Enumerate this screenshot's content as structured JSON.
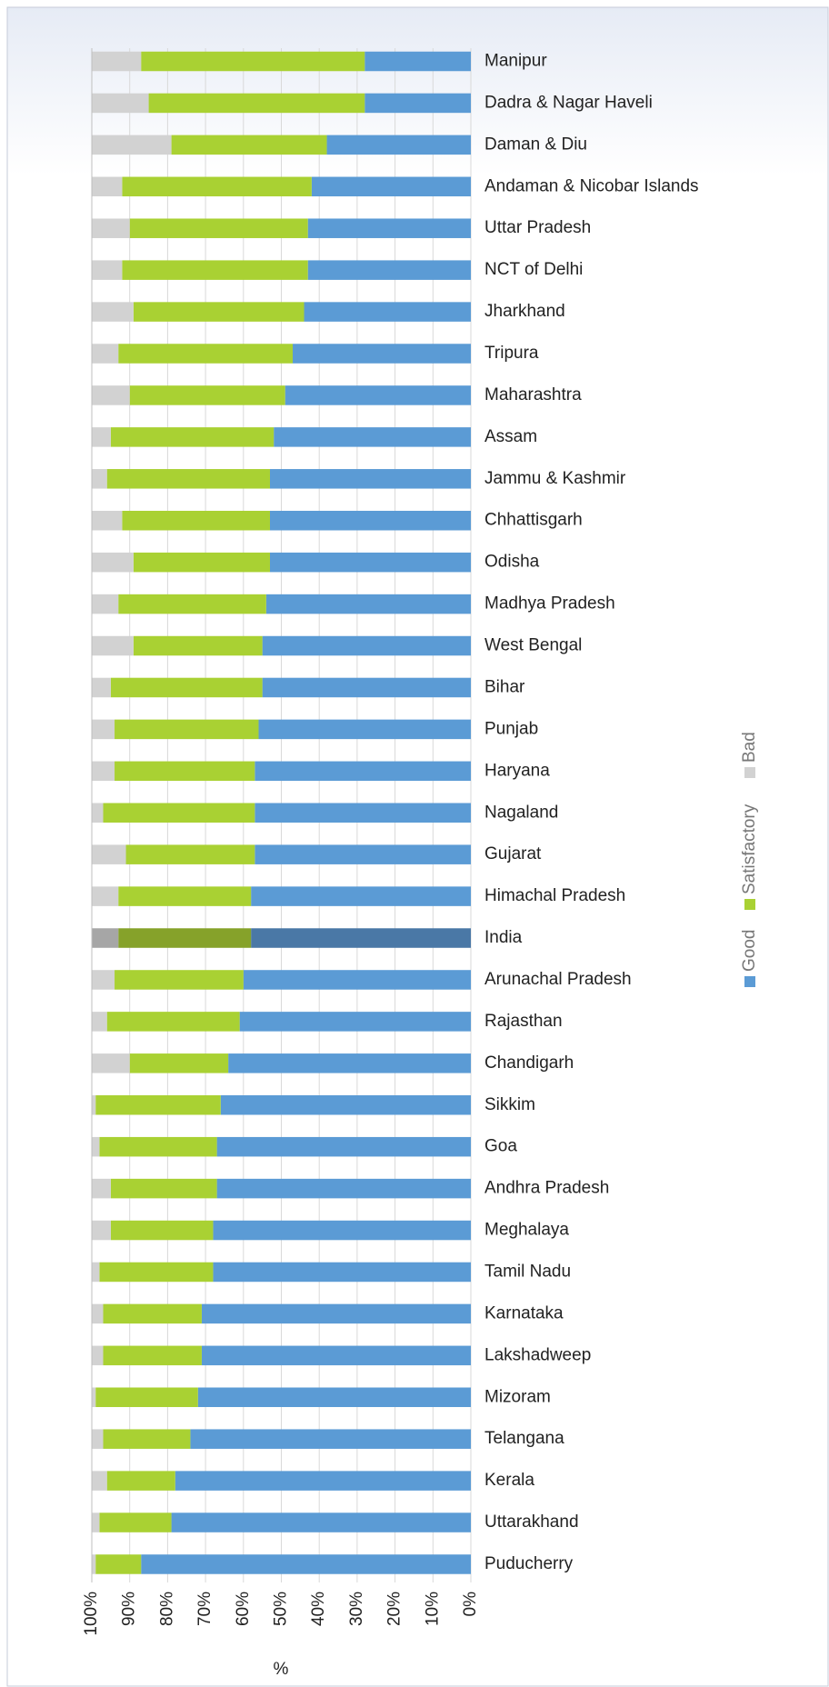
{
  "chart_data": {
    "type": "stacked-barh",
    "categories": [
      "Manipur",
      "Dadra & Nagar Haveli",
      "Daman & Diu",
      "Andaman & Nicobar Islands",
      "Uttar Pradesh",
      "NCT of Delhi",
      "Jharkhand",
      "Tripura",
      "Maharashtra",
      "Assam",
      "Jammu & Kashmir",
      "Chhattisgarh",
      "Odisha",
      "Madhya Pradesh",
      "West Bengal",
      "Bihar",
      "Punjab",
      "Haryana",
      "Nagaland",
      "Gujarat",
      "Himachal Pradesh",
      "India",
      "Arunachal Pradesh",
      "Rajasthan",
      "Chandigarh",
      "Sikkim",
      "Goa",
      "Andhra Pradesh",
      "Meghalaya",
      "Tamil Nadu",
      "Karnataka",
      "Lakshadweep",
      "Mizoram",
      "Telangana",
      "Kerala",
      "Uttarakhand",
      "Puducherry"
    ],
    "series": [
      {
        "name": "Good",
        "color": "#5b9bd5",
        "highlight_color": "#4a78a6",
        "values": [
          28,
          28,
          38,
          42,
          43,
          43,
          44,
          47,
          49,
          52,
          53,
          53,
          53,
          54,
          55,
          55,
          56,
          57,
          57,
          57,
          58,
          58,
          60,
          61,
          64,
          66,
          67,
          67,
          68,
          68,
          71,
          71,
          72,
          74,
          78,
          79,
          87
        ]
      },
      {
        "name": "Satisfactory",
        "color": "#a9d133",
        "highlight_color": "#86a22a",
        "values": [
          59,
          57,
          41,
          50,
          47,
          49,
          45,
          46,
          41,
          43,
          43,
          39,
          36,
          39,
          34,
          40,
          38,
          37,
          40,
          34,
          35,
          35,
          34,
          35,
          26,
          33,
          31,
          28,
          27,
          30,
          26,
          26,
          27,
          23,
          18,
          19,
          12
        ]
      },
      {
        "name": "Bad",
        "color": "#d2d2d2",
        "highlight_color": "#a6a6a6",
        "values": [
          13,
          15,
          21,
          8,
          10,
          8,
          11,
          7,
          10,
          5,
          4,
          8,
          11,
          7,
          11,
          5,
          6,
          6,
          3,
          9,
          7,
          7,
          6,
          4,
          10,
          1,
          2,
          5,
          5,
          2,
          3,
          3,
          1,
          3,
          4,
          2,
          1
        ]
      }
    ],
    "highlight_category": "India",
    "x_label": "%",
    "xlim": [
      100,
      0
    ],
    "xticks": [
      {
        "value": 100,
        "label": "100%"
      },
      {
        "value": 90,
        "label": "90%"
      },
      {
        "value": 80,
        "label": "80%"
      },
      {
        "value": 70,
        "label": "70%"
      },
      {
        "value": 60,
        "label": "60%"
      },
      {
        "value": 50,
        "label": "50%"
      },
      {
        "value": 40,
        "label": "40%"
      },
      {
        "value": 30,
        "label": "30%"
      },
      {
        "value": 20,
        "label": "20%"
      },
      {
        "value": 10,
        "label": "10%"
      },
      {
        "value": 0,
        "label": "0%"
      }
    ],
    "grid": true,
    "legend": "right"
  }
}
